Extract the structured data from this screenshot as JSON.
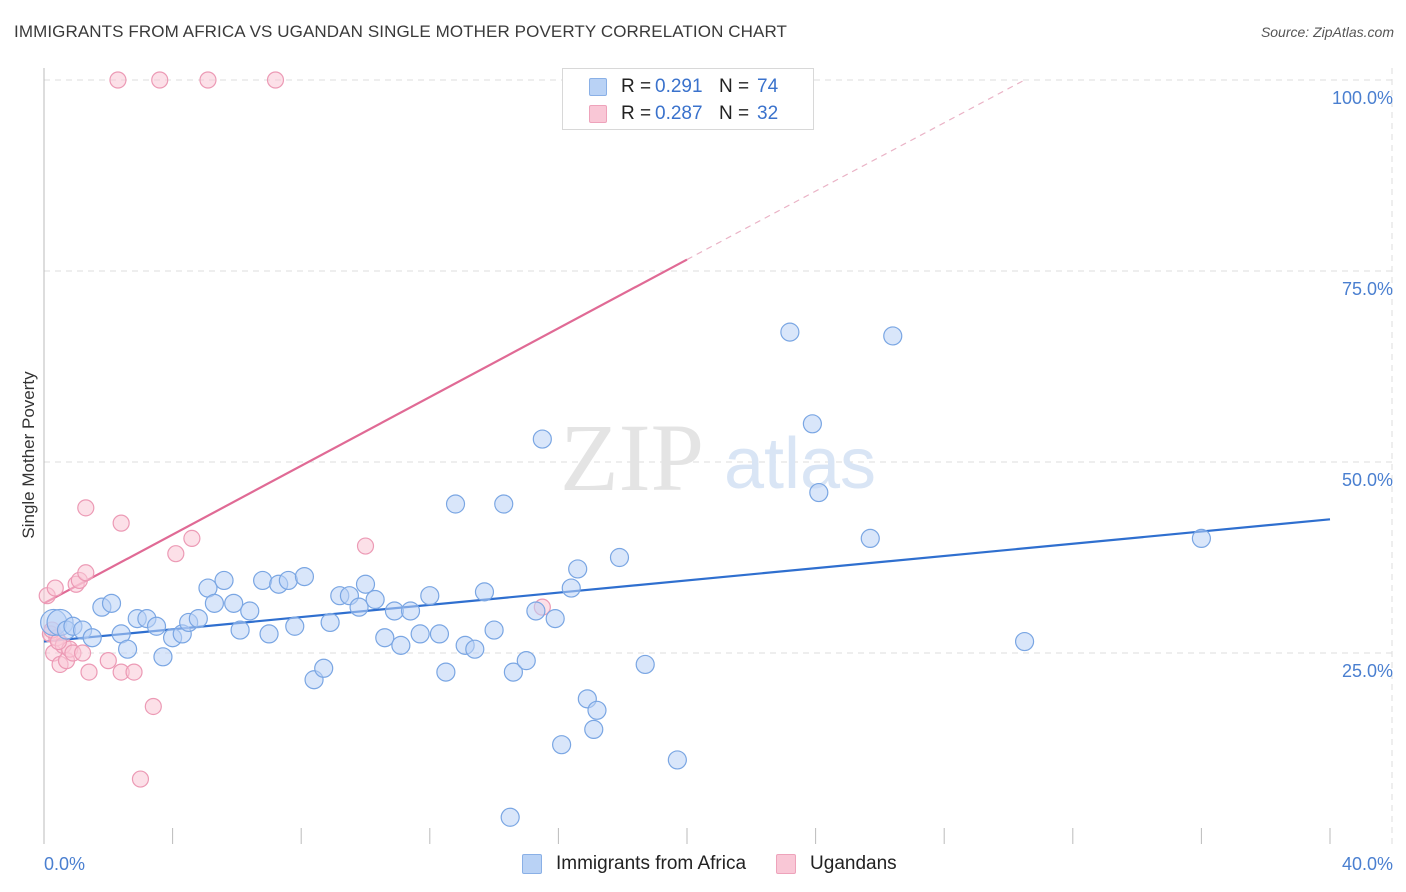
{
  "header": {
    "title": "IMMIGRANTS FROM AFRICA VS UGANDAN SINGLE MOTHER POVERTY CORRELATION CHART",
    "source": "Source: ZipAtlas.com"
  },
  "watermark": {
    "zip": "ZIP",
    "atlas": "atlas"
  },
  "legend_top": {
    "rows": [
      {
        "r_label": "R =",
        "r_value": "0.291",
        "n_label": "N =",
        "n_value": "74"
      },
      {
        "r_label": "R =",
        "r_value": "0.287",
        "n_label": "N =",
        "n_value": "32"
      }
    ]
  },
  "legend_bottom": {
    "items": [
      {
        "label": "Immigrants from Africa"
      },
      {
        "label": "Ugandans"
      }
    ]
  },
  "colors": {
    "africa_fill": "#b9d2f5",
    "africa_stroke": "#7aa6e3",
    "africa_line": "#2f6fcf",
    "uganda_fill": "#f9c7d6",
    "uganda_stroke": "#ec9ab5",
    "uganda_line": "#e06a95",
    "grid": "#dddddd",
    "axis_text": "#4a7fd0"
  },
  "chart_data": {
    "type": "scatter",
    "title": "IMMIGRANTS FROM AFRICA VS UGANDAN SINGLE MOTHER POVERTY CORRELATION CHART",
    "xlabel": "",
    "ylabel": "Single Mother Poverty",
    "xlim": [
      0,
      40
    ],
    "ylim": [
      0,
      100
    ],
    "x_tick_labels": [
      "0.0%",
      "40.0%"
    ],
    "y_ticks": [
      25,
      50,
      75,
      100
    ],
    "y_tick_labels": [
      "25.0%",
      "50.0%",
      "75.0%",
      "100.0%"
    ],
    "grid": true,
    "series": [
      {
        "name": "Immigrants from Africa",
        "r": 0.291,
        "n": 74,
        "trend": {
          "x": [
            0,
            40
          ],
          "y": [
            26.5,
            42.5
          ],
          "dashed_extension": false
        },
        "points": [
          [
            0.3,
            29
          ],
          [
            0.5,
            29
          ],
          [
            0.7,
            28
          ],
          [
            0.9,
            28.5
          ],
          [
            1.2,
            28
          ],
          [
            1.5,
            27
          ],
          [
            1.8,
            31
          ],
          [
            2.1,
            31.5
          ],
          [
            2.4,
            27.5
          ],
          [
            2.6,
            25.5
          ],
          [
            2.9,
            29.5
          ],
          [
            3.2,
            29.5
          ],
          [
            3.5,
            28.5
          ],
          [
            3.7,
            24.5
          ],
          [
            4.0,
            27
          ],
          [
            4.3,
            27.5
          ],
          [
            4.5,
            29
          ],
          [
            4.8,
            29.5
          ],
          [
            5.1,
            33.5
          ],
          [
            5.3,
            31.5
          ],
          [
            5.6,
            34.5
          ],
          [
            5.9,
            31.5
          ],
          [
            6.1,
            28
          ],
          [
            6.4,
            30.5
          ],
          [
            6.8,
            34.5
          ],
          [
            7.0,
            27.5
          ],
          [
            7.3,
            34
          ],
          [
            7.6,
            34.5
          ],
          [
            7.8,
            28.5
          ],
          [
            8.1,
            35
          ],
          [
            8.4,
            21.5
          ],
          [
            8.7,
            23
          ],
          [
            8.9,
            29
          ],
          [
            9.2,
            32.5
          ],
          [
            9.5,
            32.5
          ],
          [
            9.8,
            31
          ],
          [
            10.0,
            34
          ],
          [
            10.3,
            32
          ],
          [
            10.6,
            27
          ],
          [
            10.9,
            30.5
          ],
          [
            11.1,
            26
          ],
          [
            11.4,
            30.5
          ],
          [
            11.7,
            27.5
          ],
          [
            12.0,
            32.5
          ],
          [
            12.3,
            27.5
          ],
          [
            12.5,
            22.5
          ],
          [
            12.8,
            44.5
          ],
          [
            13.1,
            26
          ],
          [
            13.4,
            25.5
          ],
          [
            13.7,
            33
          ],
          [
            14.0,
            28
          ],
          [
            14.3,
            44.5
          ],
          [
            14.6,
            22.5
          ],
          [
            15.0,
            24
          ],
          [
            15.3,
            30.5
          ],
          [
            15.5,
            53
          ],
          [
            15.9,
            29.5
          ],
          [
            16.1,
            13
          ],
          [
            16.4,
            33.5
          ],
          [
            16.6,
            36
          ],
          [
            16.9,
            19
          ],
          [
            17.1,
            15
          ],
          [
            17.2,
            17.5
          ],
          [
            17.9,
            37.5
          ],
          [
            18.7,
            23.5
          ],
          [
            14.5,
            3.5
          ],
          [
            19.7,
            11
          ],
          [
            23.2,
            67
          ],
          [
            23.9,
            55
          ],
          [
            24.1,
            46
          ],
          [
            25.7,
            40
          ],
          [
            26.4,
            66.5
          ],
          [
            30.5,
            26.5
          ],
          [
            36.0,
            40
          ]
        ]
      },
      {
        "name": "Ugandans",
        "r": 0.287,
        "n": 32,
        "trend": {
          "x": [
            0,
            20
          ],
          "y": [
            31.5,
            76.5
          ],
          "dashed_extension_to": [
            30.5,
            100
          ]
        },
        "points": [
          [
            0.1,
            32.5
          ],
          [
            0.2,
            27.5
          ],
          [
            0.3,
            25
          ],
          [
            0.4,
            27
          ],
          [
            0.5,
            23.5
          ],
          [
            0.6,
            26
          ],
          [
            0.7,
            24
          ],
          [
            0.8,
            25.5
          ],
          [
            0.9,
            25
          ],
          [
            1.0,
            34
          ],
          [
            1.1,
            34.5
          ],
          [
            1.2,
            25
          ],
          [
            1.3,
            35.5
          ],
          [
            1.4,
            22.5
          ],
          [
            1.3,
            44
          ],
          [
            2.0,
            24
          ],
          [
            2.4,
            22.5
          ],
          [
            2.8,
            22.5
          ],
          [
            2.4,
            42
          ],
          [
            3.0,
            8.5
          ],
          [
            3.4,
            18
          ],
          [
            4.1,
            38
          ],
          [
            4.6,
            40
          ],
          [
            2.3,
            100
          ],
          [
            3.6,
            100
          ],
          [
            5.1,
            100
          ],
          [
            7.2,
            100
          ],
          [
            10.0,
            39
          ],
          [
            15.5,
            31
          ],
          [
            0.25,
            28
          ],
          [
            0.35,
            33.5
          ],
          [
            0.45,
            26.5
          ]
        ]
      }
    ]
  }
}
